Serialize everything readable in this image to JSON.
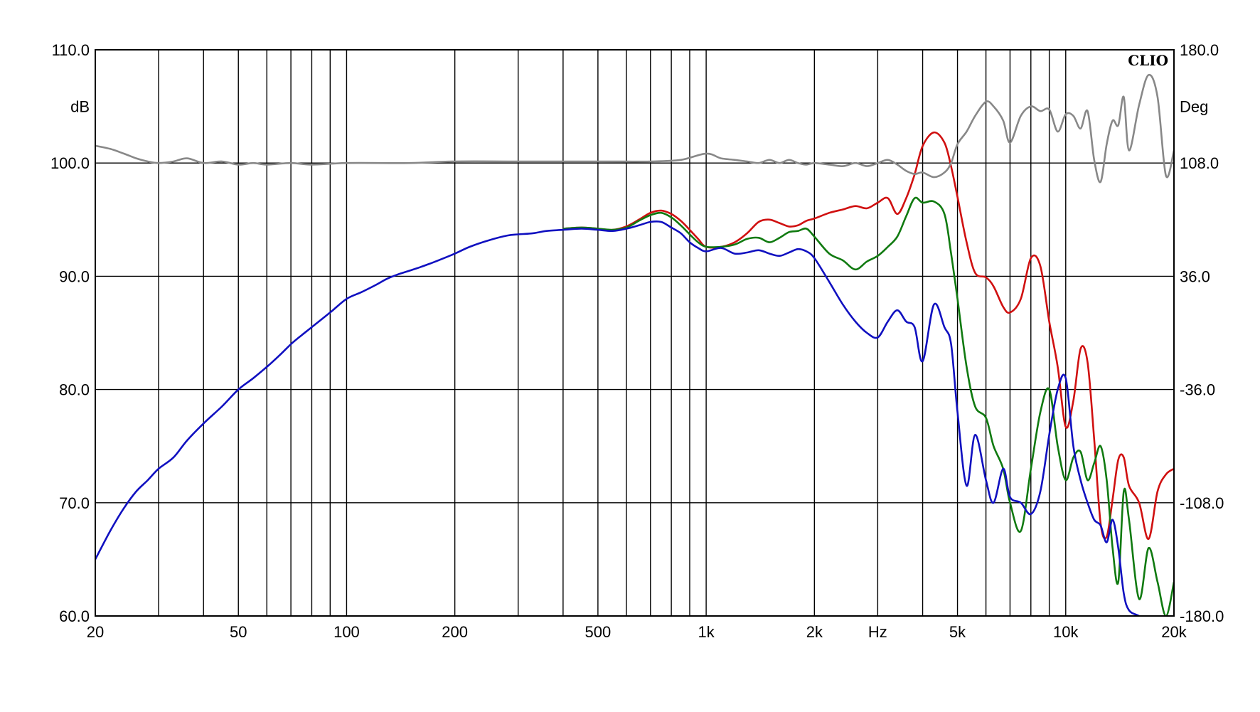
{
  "brand": "CLIO",
  "chart_data": {
    "type": "line",
    "title": "",
    "x_scale": "log",
    "xlim": [
      20,
      20000
    ],
    "x_unit_label": "Hz",
    "x_ticks": [
      {
        "value": 20,
        "label": "20"
      },
      {
        "value": 50,
        "label": "50"
      },
      {
        "value": 100,
        "label": "100"
      },
      {
        "value": 200,
        "label": "200"
      },
      {
        "value": 500,
        "label": "500"
      },
      {
        "value": 1000,
        "label": "1k"
      },
      {
        "value": 2000,
        "label": "2k"
      },
      {
        "value": 5000,
        "label": "5k"
      },
      {
        "value": 10000,
        "label": "10k"
      },
      {
        "value": 20000,
        "label": "20k"
      }
    ],
    "left_axis": {
      "unit": "dB",
      "ylim": [
        60,
        110
      ],
      "ticks": [
        "60.0",
        "70.0",
        "80.0",
        "90.0",
        "100.0",
        "110.0"
      ]
    },
    "right_axis": {
      "unit": "Deg",
      "ylim": [
        -180,
        180
      ],
      "ticks": [
        "-180.0",
        "-108.0",
        "-36.0",
        "36.0",
        "108.0",
        "180.0"
      ]
    },
    "grid": true,
    "series": [
      {
        "axis": "left",
        "color": "#d01010",
        "x": [
          400,
          450,
          500,
          550,
          600,
          650,
          700,
          750,
          800,
          850,
          900,
          950,
          1000,
          1100,
          1200,
          1300,
          1400,
          1500,
          1600,
          1700,
          1800,
          1900,
          2000,
          2200,
          2400,
          2600,
          2800,
          3000,
          3200,
          3400,
          3600,
          3800,
          4000,
          4300,
          4600,
          4800,
          5000,
          5300,
          5600,
          6000,
          6300,
          6700,
          7000,
          7500,
          8000,
          8500,
          9000,
          9500,
          10000,
          10500,
          11000,
          11500,
          12000,
          12500,
          13000,
          13500,
          14000,
          14500,
          15000,
          16000,
          17000,
          18000,
          19000,
          20000
        ],
        "y": [
          94.2,
          94.3,
          94.2,
          94.1,
          94.4,
          95.0,
          95.6,
          95.8,
          95.5,
          94.9,
          94.1,
          93.3,
          92.6,
          92.6,
          93.0,
          93.8,
          94.8,
          95.0,
          94.7,
          94.4,
          94.5,
          94.9,
          95.1,
          95.6,
          95.9,
          96.2,
          96.0,
          96.5,
          96.9,
          95.5,
          96.9,
          99.0,
          101.5,
          102.7,
          101.8,
          99.7,
          97.0,
          93.0,
          90.3,
          89.9,
          89.1,
          87.3,
          86.8,
          88.0,
          91.6,
          90.9,
          86.0,
          82.0,
          76.7,
          79.0,
          83.6,
          82.4,
          75.6,
          68.2,
          67.0,
          70.3,
          73.8,
          74.0,
          71.5,
          70.0,
          66.8,
          71.0,
          72.5,
          73.0
        ]
      },
      {
        "axis": "left",
        "color": "#107a10",
        "x": [
          400,
          450,
          500,
          550,
          600,
          650,
          700,
          750,
          800,
          850,
          900,
          950,
          1000,
          1100,
          1200,
          1300,
          1400,
          1500,
          1600,
          1700,
          1800,
          1900,
          2000,
          2200,
          2400,
          2600,
          2800,
          3000,
          3200,
          3400,
          3600,
          3800,
          4000,
          4300,
          4600,
          4800,
          5000,
          5300,
          5600,
          6000,
          6300,
          6700,
          7000,
          7500,
          8000,
          8500,
          9000,
          9500,
          10000,
          10500,
          11000,
          11500,
          12000,
          12500,
          13000,
          13500,
          14000,
          14500,
          15000,
          16000,
          17000,
          18000,
          19000,
          20000
        ],
        "y": [
          94.2,
          94.3,
          94.2,
          94.1,
          94.3,
          94.9,
          95.4,
          95.6,
          95.2,
          94.5,
          93.7,
          93.0,
          92.6,
          92.6,
          92.8,
          93.3,
          93.4,
          93.0,
          93.4,
          93.9,
          94.0,
          94.2,
          93.5,
          92.0,
          91.4,
          90.6,
          91.3,
          91.8,
          92.6,
          93.5,
          95.3,
          96.9,
          96.5,
          96.6,
          95.5,
          92.0,
          88.0,
          82.0,
          78.5,
          77.5,
          75.0,
          73.0,
          70.0,
          67.5,
          73.0,
          78.0,
          80.0,
          75.0,
          72.0,
          74.0,
          74.5,
          72.0,
          73.5,
          75.0,
          72.0,
          66.0,
          63.0,
          71.0,
          68.5,
          61.5,
          66.0,
          63.0,
          60.0,
          63.0
        ]
      },
      {
        "axis": "left",
        "color": "#1010c0",
        "x": [
          20,
          22,
          24,
          26,
          28,
          30,
          33,
          36,
          40,
          45,
          50,
          55,
          60,
          65,
          70,
          75,
          80,
          90,
          100,
          110,
          120,
          130,
          140,
          150,
          160,
          170,
          180,
          200,
          220,
          250,
          280,
          300,
          330,
          360,
          400,
          450,
          500,
          550,
          600,
          650,
          700,
          750,
          800,
          850,
          900,
          950,
          1000,
          1100,
          1200,
          1300,
          1400,
          1500,
          1600,
          1700,
          1800,
          1900,
          2000,
          2200,
          2400,
          2600,
          2800,
          3000,
          3200,
          3400,
          3600,
          3800,
          4000,
          4300,
          4600,
          4800,
          5000,
          5300,
          5600,
          6000,
          6300,
          6700,
          7000,
          7500,
          8000,
          8500,
          9000,
          9500,
          10000,
          10500,
          11000,
          11500,
          12000,
          12500,
          13000,
          13500,
          14000,
          14500,
          15000,
          16000,
          17000,
          18000,
          19000,
          20000
        ],
        "y": [
          65.0,
          67.5,
          69.5,
          71.0,
          72.0,
          73.0,
          74.0,
          75.5,
          77.0,
          78.5,
          80.0,
          81.0,
          82.0,
          83.0,
          84.0,
          84.8,
          85.5,
          86.8,
          88.0,
          88.6,
          89.2,
          89.8,
          90.2,
          90.5,
          90.8,
          91.1,
          91.4,
          92.0,
          92.6,
          93.2,
          93.6,
          93.7,
          93.8,
          94.0,
          94.1,
          94.2,
          94.1,
          94.0,
          94.2,
          94.5,
          94.8,
          94.8,
          94.3,
          93.8,
          93.0,
          92.5,
          92.2,
          92.5,
          92.0,
          92.1,
          92.3,
          92.0,
          91.8,
          92.1,
          92.4,
          92.2,
          91.6,
          89.5,
          87.5,
          86.0,
          85.0,
          84.6,
          86.0,
          87.0,
          86.0,
          85.5,
          82.5,
          87.5,
          85.5,
          84.0,
          78.0,
          71.5,
          76.0,
          72.0,
          70.0,
          73.0,
          70.5,
          70.0,
          69.0,
          71.0,
          76.0,
          80.0,
          81.0,
          75.0,
          72.0,
          70.0,
          68.5,
          68.0,
          66.5,
          68.5,
          66.0,
          62.0,
          60.5,
          60.0,
          59.5,
          59.0,
          58.5,
          58.0
        ]
      },
      {
        "axis": "right",
        "color": "#888888",
        "x": [
          20,
          22,
          24,
          26,
          28,
          30,
          33,
          36,
          40,
          45,
          50,
          55,
          60,
          70,
          80,
          100,
          150,
          200,
          300,
          500,
          700,
          850,
          1000,
          1100,
          1200,
          1300,
          1400,
          1500,
          1600,
          1700,
          1800,
          1900,
          2000,
          2200,
          2400,
          2600,
          2800,
          3000,
          3200,
          3400,
          3600,
          3800,
          4000,
          4300,
          4600,
          4800,
          5000,
          5300,
          5600,
          6000,
          6300,
          6700,
          7000,
          7500,
          8000,
          8500,
          9000,
          9500,
          10000,
          10500,
          11000,
          11500,
          12000,
          12500,
          13000,
          13500,
          14000,
          14500,
          15000,
          16000,
          17000,
          18000,
          19000,
          20000
        ],
        "y": [
          119,
          117,
          114,
          111,
          109,
          108,
          109,
          111,
          108,
          109,
          107,
          108,
          107,
          108,
          107,
          108,
          108,
          109,
          109,
          109,
          109,
          110,
          114,
          111,
          110,
          109,
          108,
          110,
          108,
          110,
          108,
          107,
          108,
          107,
          106,
          108,
          106,
          108,
          110,
          107,
          103,
          101,
          102,
          99,
          102,
          108,
          120,
          128,
          138,
          147,
          144,
          135,
          121,
          138,
          144,
          141,
          142,
          128,
          139,
          138,
          130,
          141,
          110,
          96,
          120,
          135,
          132,
          150,
          116,
          145,
          164,
          150,
          100,
          116
        ]
      }
    ]
  }
}
